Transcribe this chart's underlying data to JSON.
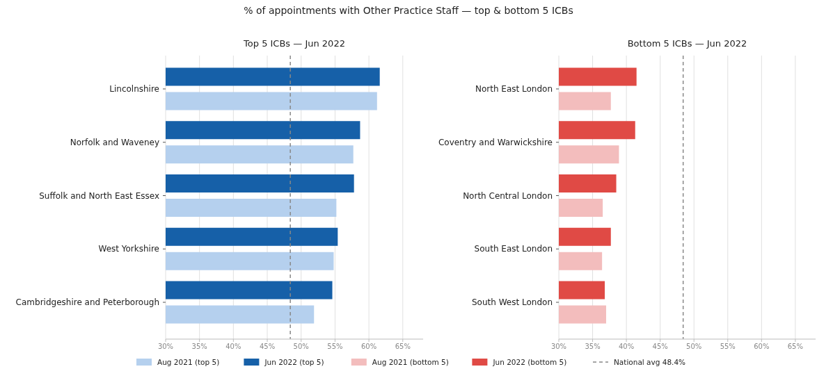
{
  "chart_data": [
    {
      "type": "bar",
      "orientation": "horizontal",
      "title": "% of appointments with Other Practice Staff — top & bottom 5 ICBs",
      "subtitle": "Top 5 ICBs — Jun 2022",
      "categories": [
        "Lincolnshire",
        "Norfolk and Waveney",
        "Suffolk and North East Essex",
        "West Yorkshire",
        "Cambridgeshire and Peterborough"
      ],
      "series": [
        {
          "name": "Aug 2021 (top 5)",
          "color": "#b5d0ee",
          "values": [
            61.2,
            57.7,
            55.2,
            54.8,
            51.9
          ]
        },
        {
          "name": "Jun 2022 (top 5)",
          "color": "#1660a8",
          "values": [
            61.6,
            58.7,
            57.8,
            55.4,
            54.6
          ]
        }
      ],
      "xlim": [
        30,
        68
      ],
      "xticks": [
        {
          "value": 30,
          "label": "30%"
        },
        {
          "value": 35,
          "label": "35%"
        },
        {
          "value": 40,
          "label": "40%"
        },
        {
          "value": 45,
          "label": "45%"
        },
        {
          "value": 50,
          "label": "50%"
        },
        {
          "value": 55,
          "label": "55%"
        },
        {
          "value": 60,
          "label": "60%"
        },
        {
          "value": 65,
          "label": "65%"
        }
      ],
      "ref_lines": [
        {
          "axis": "x",
          "value": 48.4,
          "color": "#888888",
          "line_style": "dashed"
        }
      ],
      "grid": "x",
      "legend": "bottom"
    },
    {
      "type": "bar",
      "orientation": "horizontal",
      "title": "Bottom 5 ICBs — Jun 2022",
      "categories": [
        "North East London",
        "Coventry and Warwickshire",
        "North Central London",
        "South East London",
        "South West London"
      ],
      "series": [
        {
          "name": "Aug 2021 (bottom 5)",
          "color": "#f3bdbd",
          "values": [
            37.7,
            38.9,
            36.5,
            36.4,
            37.0
          ]
        },
        {
          "name": "Jun 2022 (bottom 5)",
          "color": "#e04a45",
          "values": [
            41.5,
            41.3,
            38.5,
            37.7,
            36.8
          ]
        }
      ],
      "xlim": [
        30,
        68
      ],
      "xticks": [
        {
          "value": 30,
          "label": "30%"
        },
        {
          "value": 35,
          "label": "35%"
        },
        {
          "value": 40,
          "label": "40%"
        },
        {
          "value": 45,
          "label": "45%"
        },
        {
          "value": 50,
          "label": "50%"
        },
        {
          "value": 55,
          "label": "55%"
        },
        {
          "value": 60,
          "label": "60%"
        },
        {
          "value": 65,
          "label": "65%"
        }
      ],
      "ref_lines": [
        {
          "axis": "x",
          "value": 48.4,
          "label": "National avg 48.4%",
          "color": "#888888",
          "line_style": "dashed"
        }
      ],
      "grid": "x",
      "legend": "bottom"
    }
  ]
}
